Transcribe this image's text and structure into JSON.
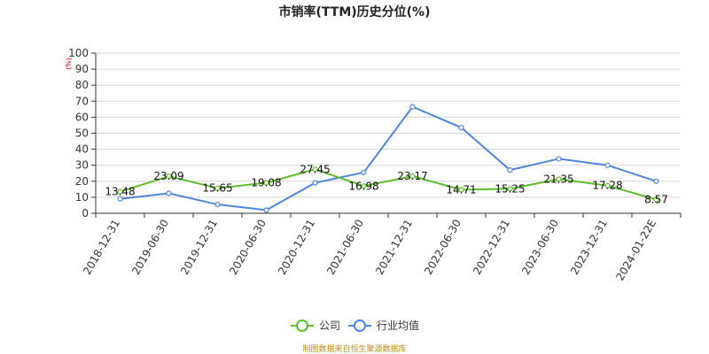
{
  "chart_data": {
    "type": "line",
    "title": "市销率(TTM)历史分位(%)",
    "y_unit": "(%)",
    "ylim": [
      0,
      100
    ],
    "y_ticks": [
      0,
      10,
      20,
      30,
      40,
      50,
      60,
      70,
      80,
      90,
      100
    ],
    "grid": true,
    "legend_position": "bottom-center",
    "categories": [
      "2018-12-31",
      "2019-06-30",
      "2019-12-31",
      "2020-06-30",
      "2020-12-31",
      "2021-06-30",
      "2021-12-31",
      "2022-06-30",
      "2022-12-31",
      "2023-06-30",
      "2023-12-31",
      "2024-01-22E"
    ],
    "series": [
      {
        "name": "公司",
        "color": "#5cbf2a",
        "values": [
          13.48,
          23.09,
          15.65,
          19.08,
          27.45,
          16.98,
          23.17,
          14.71,
          15.25,
          21.35,
          17.28,
          8.57
        ],
        "labels": [
          "13.48",
          "23.09",
          "15.65",
          "19.08",
          "27.45",
          "16.98",
          "23.17",
          "14.71",
          "15.25",
          "21.35",
          "17.28",
          "8.57"
        ]
      },
      {
        "name": "行业均值",
        "color": "#4f86db",
        "values": [
          9,
          12.5,
          5.5,
          2,
          19,
          25.5,
          66.5,
          53.5,
          27,
          34,
          30,
          20
        ]
      }
    ],
    "source": "制图数据来自恒生聚源数据库"
  }
}
